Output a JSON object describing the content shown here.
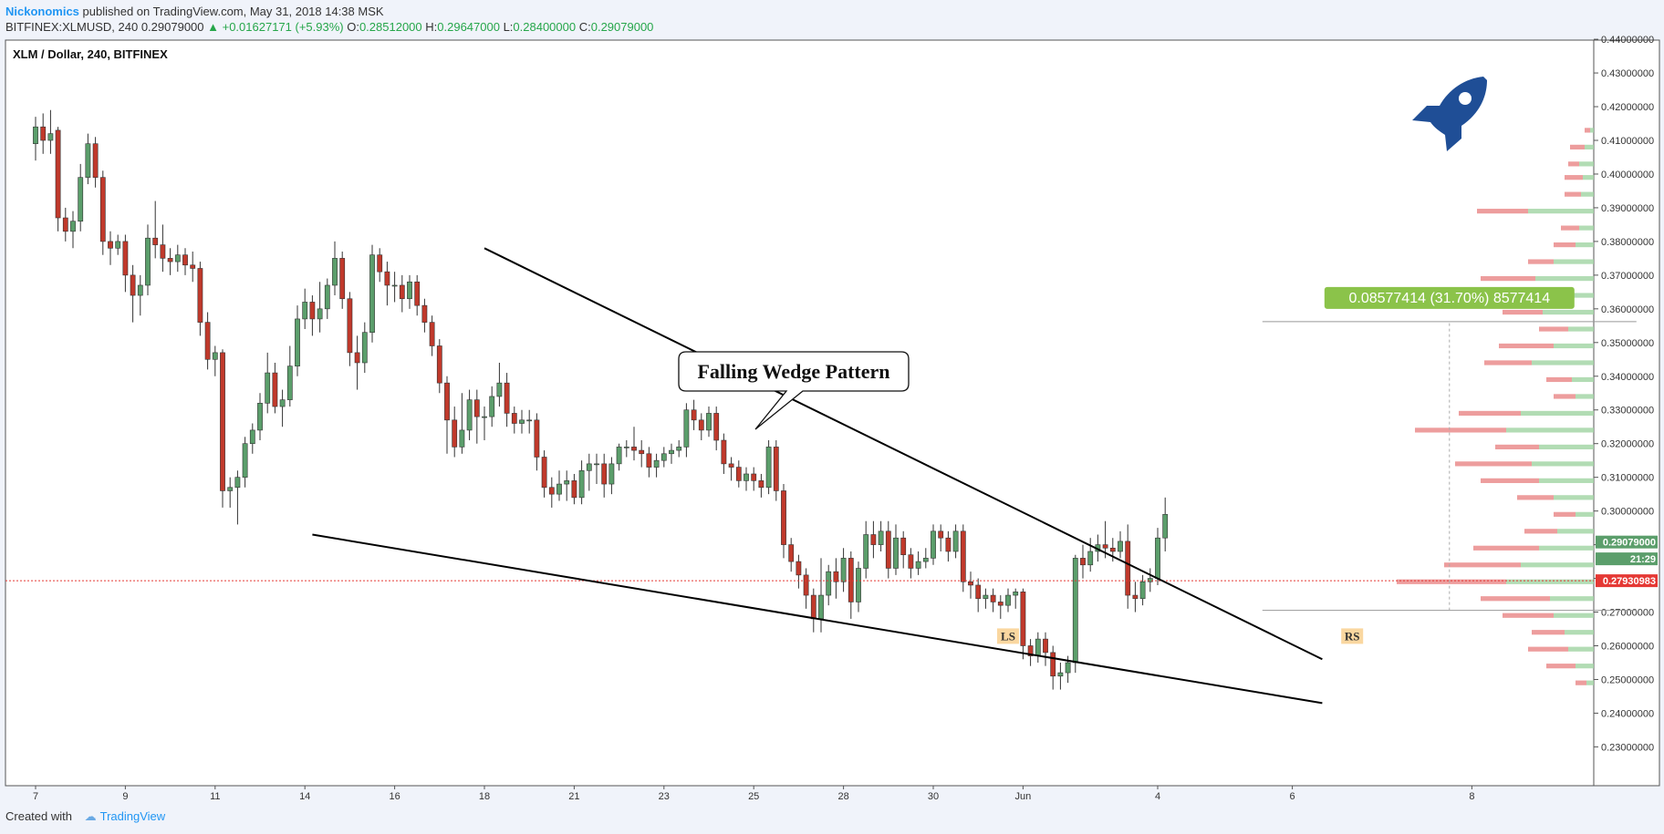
{
  "header": {
    "author": "Nickonomics",
    "published": " published on TradingView.com, May 31, 2018 14:38 MSK",
    "symbol_line": "BITFINEX:XLMUSD, 240  0.29079000",
    "change": " ▲ +0.01627171 (+5.93%) ",
    "o_label": "O:",
    "o_value": "0.28512000",
    "h_label": " H:",
    "h_value": "0.29647000",
    "l_label": " L:",
    "l_value": "0.28400000",
    "c_label": " C:",
    "c_value": "0.29079000"
  },
  "footer": {
    "created_with": "Created with",
    "brand": "TradingView"
  },
  "colors": {
    "up": "#5b9e6b",
    "down": "#c0392b",
    "line": "#000000",
    "ref_line": "#e53935",
    "label_bg": "#fad7a0",
    "measure_bg": "#8bc34a",
    "rocket": "#1f4e96"
  },
  "chart_data": {
    "type": "candlestick",
    "title": "XLM / Dollar, 240, BITFINEX",
    "ylim": [
      0.22,
      0.445
    ],
    "y_ticks": [
      "0.44000000",
      "0.43000000",
      "0.42000000",
      "0.41000000",
      "0.40000000",
      "0.39000000",
      "0.38000000",
      "0.37000000",
      "0.36000000",
      "0.35000000",
      "0.34000000",
      "0.33000000",
      "0.32000000",
      "0.31000000",
      "0.30000000",
      "0.29000000",
      "0.28000000",
      "0.27000000",
      "0.26000000",
      "0.25000000",
      "0.24000000",
      "0.23000000"
    ],
    "x_tick_labels": [
      "7",
      "9",
      "11",
      "14",
      "16",
      "18",
      "21",
      "23",
      "25",
      "28",
      "30",
      "Jun",
      "4",
      "6",
      "8"
    ],
    "x_tick_index": [
      0,
      12,
      24,
      36,
      48,
      60,
      72,
      84,
      96,
      108,
      120,
      132,
      150,
      168,
      192
    ],
    "candles": [
      [
        0.409,
        0.414,
        0.404,
        0.417
      ],
      [
        0.414,
        0.41,
        0.406,
        0.418
      ],
      [
        0.41,
        0.412,
        0.406,
        0.419
      ],
      [
        0.413,
        0.387,
        0.383,
        0.414
      ],
      [
        0.387,
        0.383,
        0.38,
        0.39
      ],
      [
        0.383,
        0.386,
        0.378,
        0.389
      ],
      [
        0.386,
        0.399,
        0.383,
        0.403
      ],
      [
        0.399,
        0.409,
        0.397,
        0.412
      ],
      [
        0.409,
        0.399,
        0.396,
        0.411
      ],
      [
        0.399,
        0.38,
        0.376,
        0.401
      ],
      [
        0.38,
        0.378,
        0.373,
        0.383
      ],
      [
        0.378,
        0.38,
        0.376,
        0.382
      ],
      [
        0.38,
        0.37,
        0.365,
        0.382
      ],
      [
        0.37,
        0.364,
        0.356,
        0.373
      ],
      [
        0.364,
        0.367,
        0.358,
        0.37
      ],
      [
        0.367,
        0.381,
        0.364,
        0.385
      ],
      [
        0.381,
        0.379,
        0.375,
        0.392
      ],
      [
        0.379,
        0.375,
        0.371,
        0.385
      ],
      [
        0.375,
        0.374,
        0.37,
        0.378
      ],
      [
        0.374,
        0.376,
        0.371,
        0.379
      ],
      [
        0.376,
        0.373,
        0.37,
        0.378
      ],
      [
        0.373,
        0.372,
        0.368,
        0.377
      ],
      [
        0.372,
        0.356,
        0.352,
        0.374
      ],
      [
        0.356,
        0.345,
        0.342,
        0.359
      ],
      [
        0.345,
        0.347,
        0.34,
        0.349
      ],
      [
        0.347,
        0.306,
        0.301,
        0.348
      ],
      [
        0.306,
        0.307,
        0.301,
        0.31
      ],
      [
        0.307,
        0.31,
        0.296,
        0.312
      ],
      [
        0.31,
        0.32,
        0.307,
        0.322
      ],
      [
        0.32,
        0.324,
        0.317,
        0.326
      ],
      [
        0.324,
        0.332,
        0.321,
        0.335
      ],
      [
        0.332,
        0.341,
        0.329,
        0.347
      ],
      [
        0.341,
        0.331,
        0.329,
        0.344
      ],
      [
        0.331,
        0.333,
        0.325,
        0.336
      ],
      [
        0.333,
        0.343,
        0.331,
        0.349
      ],
      [
        0.343,
        0.357,
        0.34,
        0.361
      ],
      [
        0.357,
        0.362,
        0.354,
        0.366
      ],
      [
        0.362,
        0.357,
        0.352,
        0.364
      ],
      [
        0.357,
        0.36,
        0.353,
        0.368
      ],
      [
        0.36,
        0.367,
        0.357,
        0.369
      ],
      [
        0.367,
        0.375,
        0.364,
        0.38
      ],
      [
        0.375,
        0.363,
        0.36,
        0.377
      ],
      [
        0.363,
        0.347,
        0.343,
        0.365
      ],
      [
        0.347,
        0.344,
        0.336,
        0.352
      ],
      [
        0.344,
        0.353,
        0.341,
        0.356
      ],
      [
        0.353,
        0.376,
        0.35,
        0.379
      ],
      [
        0.376,
        0.371,
        0.368,
        0.378
      ],
      [
        0.371,
        0.367,
        0.361,
        0.374
      ],
      [
        0.367,
        0.367,
        0.362,
        0.371
      ],
      [
        0.367,
        0.363,
        0.359,
        0.37
      ],
      [
        0.363,
        0.368,
        0.36,
        0.37
      ],
      [
        0.368,
        0.361,
        0.358,
        0.37
      ],
      [
        0.361,
        0.356,
        0.353,
        0.363
      ],
      [
        0.356,
        0.349,
        0.346,
        0.358
      ],
      [
        0.349,
        0.338,
        0.335,
        0.351
      ],
      [
        0.338,
        0.327,
        0.317,
        0.34
      ],
      [
        0.327,
        0.319,
        0.316,
        0.331
      ],
      [
        0.319,
        0.324,
        0.317,
        0.335
      ],
      [
        0.324,
        0.333,
        0.321,
        0.336
      ],
      [
        0.333,
        0.328,
        0.32,
        0.336
      ],
      [
        0.328,
        0.328,
        0.321,
        0.331
      ],
      [
        0.328,
        0.334,
        0.325,
        0.337
      ],
      [
        0.334,
        0.338,
        0.331,
        0.344
      ],
      [
        0.338,
        0.329,
        0.325,
        0.341
      ],
      [
        0.329,
        0.326,
        0.323,
        0.331
      ],
      [
        0.326,
        0.327,
        0.323,
        0.33
      ],
      [
        0.327,
        0.327,
        0.323,
        0.33
      ],
      [
        0.327,
        0.316,
        0.312,
        0.329
      ],
      [
        0.316,
        0.307,
        0.304,
        0.318
      ],
      [
        0.307,
        0.305,
        0.301,
        0.31
      ],
      [
        0.305,
        0.308,
        0.303,
        0.312
      ],
      [
        0.308,
        0.309,
        0.303,
        0.312
      ],
      [
        0.309,
        0.304,
        0.302,
        0.311
      ],
      [
        0.304,
        0.312,
        0.302,
        0.315
      ],
      [
        0.312,
        0.314,
        0.306,
        0.317
      ],
      [
        0.314,
        0.314,
        0.308,
        0.317
      ],
      [
        0.314,
        0.308,
        0.304,
        0.317
      ],
      [
        0.308,
        0.314,
        0.305,
        0.316
      ],
      [
        0.314,
        0.319,
        0.312,
        0.32
      ],
      [
        0.319,
        0.319,
        0.316,
        0.321
      ],
      [
        0.319,
        0.318,
        0.315,
        0.325
      ],
      [
        0.318,
        0.317,
        0.313,
        0.321
      ],
      [
        0.317,
        0.313,
        0.31,
        0.319
      ],
      [
        0.313,
        0.315,
        0.31,
        0.317
      ],
      [
        0.315,
        0.317,
        0.313,
        0.319
      ],
      [
        0.317,
        0.318,
        0.314,
        0.32
      ],
      [
        0.318,
        0.319,
        0.316,
        0.321
      ],
      [
        0.319,
        0.33,
        0.316,
        0.332
      ],
      [
        0.33,
        0.327,
        0.324,
        0.333
      ],
      [
        0.327,
        0.324,
        0.321,
        0.329
      ],
      [
        0.324,
        0.329,
        0.322,
        0.331
      ],
      [
        0.329,
        0.321,
        0.318,
        0.331
      ],
      [
        0.321,
        0.314,
        0.311,
        0.323
      ],
      [
        0.314,
        0.313,
        0.309,
        0.316
      ],
      [
        0.313,
        0.309,
        0.307,
        0.315
      ],
      [
        0.309,
        0.311,
        0.306,
        0.313
      ],
      [
        0.311,
        0.309,
        0.306,
        0.313
      ],
      [
        0.309,
        0.307,
        0.304,
        0.311
      ],
      [
        0.307,
        0.319,
        0.305,
        0.321
      ],
      [
        0.319,
        0.306,
        0.303,
        0.321
      ],
      [
        0.306,
        0.29,
        0.286,
        0.308
      ],
      [
        0.29,
        0.285,
        0.282,
        0.292
      ],
      [
        0.285,
        0.281,
        0.277,
        0.287
      ],
      [
        0.281,
        0.275,
        0.271,
        0.283
      ],
      [
        0.275,
        0.268,
        0.264,
        0.277
      ],
      [
        0.268,
        0.275,
        0.264,
        0.286
      ],
      [
        0.275,
        0.282,
        0.272,
        0.284
      ],
      [
        0.282,
        0.279,
        0.274,
        0.286
      ],
      [
        0.279,
        0.286,
        0.276,
        0.289
      ],
      [
        0.286,
        0.273,
        0.268,
        0.288
      ],
      [
        0.273,
        0.283,
        0.27,
        0.285
      ],
      [
        0.283,
        0.293,
        0.28,
        0.297
      ],
      [
        0.293,
        0.29,
        0.286,
        0.297
      ],
      [
        0.29,
        0.294,
        0.288,
        0.297
      ],
      [
        0.294,
        0.283,
        0.28,
        0.297
      ],
      [
        0.283,
        0.292,
        0.281,
        0.296
      ],
      [
        0.292,
        0.287,
        0.283,
        0.294
      ],
      [
        0.287,
        0.283,
        0.28,
        0.289
      ],
      [
        0.283,
        0.285,
        0.281,
        0.288
      ],
      [
        0.285,
        0.286,
        0.283,
        0.289
      ],
      [
        0.286,
        0.294,
        0.284,
        0.296
      ],
      [
        0.294,
        0.292,
        0.288,
        0.296
      ],
      [
        0.292,
        0.288,
        0.285,
        0.294
      ],
      [
        0.288,
        0.294,
        0.286,
        0.296
      ],
      [
        0.294,
        0.279,
        0.276,
        0.296
      ],
      [
        0.279,
        0.278,
        0.274,
        0.282
      ],
      [
        0.278,
        0.274,
        0.27,
        0.28
      ],
      [
        0.274,
        0.275,
        0.271,
        0.277
      ],
      [
        0.275,
        0.273,
        0.27,
        0.277
      ],
      [
        0.273,
        0.272,
        0.268,
        0.275
      ],
      [
        0.272,
        0.275,
        0.27,
        0.277
      ],
      [
        0.275,
        0.276,
        0.271,
        0.277
      ],
      [
        0.276,
        0.26,
        0.256,
        0.277
      ],
      [
        0.26,
        0.257,
        0.254,
        0.262
      ],
      [
        0.257,
        0.262,
        0.255,
        0.264
      ],
      [
        0.262,
        0.258,
        0.254,
        0.264
      ],
      [
        0.258,
        0.251,
        0.247,
        0.26
      ],
      [
        0.251,
        0.252,
        0.247,
        0.255
      ],
      [
        0.252,
        0.255,
        0.249,
        0.257
      ],
      [
        0.255,
        0.286,
        0.252,
        0.287
      ],
      [
        0.286,
        0.284,
        0.28,
        0.29
      ],
      [
        0.284,
        0.288,
        0.282,
        0.292
      ],
      [
        0.288,
        0.29,
        0.285,
        0.293
      ],
      [
        0.29,
        0.289,
        0.286,
        0.297
      ],
      [
        0.289,
        0.288,
        0.285,
        0.292
      ],
      [
        0.288,
        0.291,
        0.286,
        0.294
      ],
      [
        0.291,
        0.275,
        0.271,
        0.296
      ],
      [
        0.275,
        0.274,
        0.27,
        0.279
      ],
      [
        0.274,
        0.279,
        0.272,
        0.281
      ],
      [
        0.279,
        0.28,
        0.276,
        0.283
      ],
      [
        0.28,
        0.292,
        0.278,
        0.295
      ],
      [
        0.292,
        0.299,
        0.288,
        0.304
      ]
    ],
    "volume_profile": [
      {
        "price": 0.413,
        "down": 3,
        "up": 2
      },
      {
        "price": 0.408,
        "down": 8,
        "up": 5
      },
      {
        "price": 0.403,
        "down": 6,
        "up": 8
      },
      {
        "price": 0.399,
        "down": 10,
        "up": 6
      },
      {
        "price": 0.394,
        "down": 9,
        "up": 7
      },
      {
        "price": 0.389,
        "down": 28,
        "up": 36
      },
      {
        "price": 0.384,
        "down": 10,
        "up": 8
      },
      {
        "price": 0.379,
        "down": 12,
        "up": 10
      },
      {
        "price": 0.374,
        "down": 14,
        "up": 22
      },
      {
        "price": 0.369,
        "down": 30,
        "up": 32
      },
      {
        "price": 0.364,
        "down": 32,
        "up": 30
      },
      {
        "price": 0.359,
        "down": 22,
        "up": 28
      },
      {
        "price": 0.354,
        "down": 16,
        "up": 14
      },
      {
        "price": 0.349,
        "down": 30,
        "up": 22
      },
      {
        "price": 0.344,
        "down": 26,
        "up": 34
      },
      {
        "price": 0.339,
        "down": 14,
        "up": 12
      },
      {
        "price": 0.334,
        "down": 12,
        "up": 10
      },
      {
        "price": 0.329,
        "down": 34,
        "up": 40
      },
      {
        "price": 0.324,
        "down": 50,
        "up": 48
      },
      {
        "price": 0.319,
        "down": 24,
        "up": 30
      },
      {
        "price": 0.314,
        "down": 42,
        "up": 34
      },
      {
        "price": 0.309,
        "down": 32,
        "up": 30
      },
      {
        "price": 0.304,
        "down": 20,
        "up": 22
      },
      {
        "price": 0.299,
        "down": 12,
        "up": 10
      },
      {
        "price": 0.294,
        "down": 18,
        "up": 20
      },
      {
        "price": 0.289,
        "down": 36,
        "up": 30
      },
      {
        "price": 0.284,
        "down": 42,
        "up": 40
      },
      {
        "price": 0.279,
        "down": 60,
        "up": 48
      },
      {
        "price": 0.274,
        "down": 38,
        "up": 24
      },
      {
        "price": 0.269,
        "down": 28,
        "up": 22
      },
      {
        "price": 0.264,
        "down": 18,
        "up": 16
      },
      {
        "price": 0.259,
        "down": 22,
        "up": 14
      },
      {
        "price": 0.254,
        "down": 16,
        "up": 10
      },
      {
        "price": 0.249,
        "down": 6,
        "up": 4
      }
    ],
    "wedge_upper": {
      "from": [
        60,
        0.378
      ],
      "to": [
        172,
        0.256
      ]
    },
    "wedge_lower": {
      "from": [
        37,
        0.293
      ],
      "to": [
        172,
        0.243
      ]
    },
    "reference_price": 0.27930983,
    "measure": {
      "x": [
        164,
        214
      ],
      "low": 0.2705,
      "high": 0.3562,
      "label": "0.08577414 (31.70%) 8577414"
    },
    "price_labels": [
      {
        "text": "0.29079000",
        "price": 0.29079,
        "color": "#5b9e6b"
      },
      {
        "text": "21:29",
        "price": 0.2858,
        "color": "#5b9e6b"
      },
      {
        "text": "0.27930983",
        "price": 0.27931,
        "color": "#e53935"
      }
    ],
    "callout": "Falling Wedge Pattern",
    "shoulder_labels": [
      {
        "text": "LS",
        "x": 130,
        "price": 0.263
      },
      {
        "text": "RS",
        "x": 176,
        "price": 0.263
      }
    ]
  }
}
